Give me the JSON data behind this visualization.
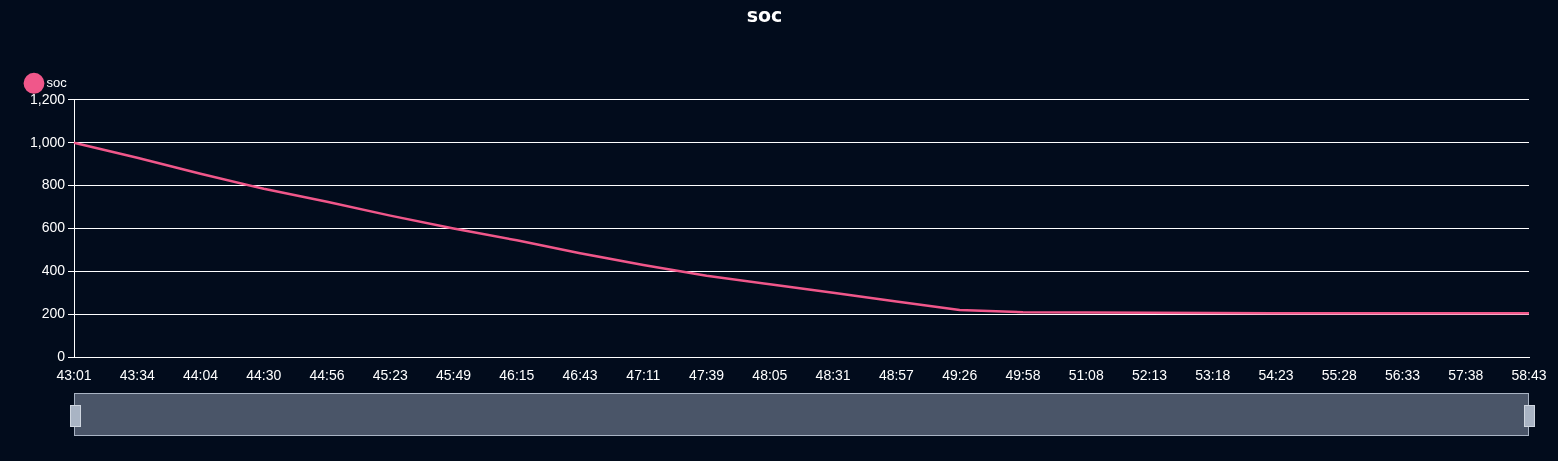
{
  "chart_data": {
    "type": "line",
    "title": "soc",
    "categories": [
      "43:01",
      "43:34",
      "44:04",
      "44:30",
      "44:56",
      "45:23",
      "45:49",
      "46:15",
      "46:43",
      "47:11",
      "47:39",
      "48:05",
      "48:31",
      "48:57",
      "49:26",
      "49:58",
      "51:08",
      "52:13",
      "53:18",
      "54:23",
      "55:28",
      "56:33",
      "57:38",
      "58:43"
    ],
    "series": [
      {
        "name": "soc",
        "color": "#f0578a",
        "values": [
          1000,
          930,
          855,
          785,
          725,
          660,
          600,
          545,
          485,
          430,
          380,
          340,
          300,
          260,
          220,
          210,
          208,
          207,
          206,
          205,
          205,
          205,
          205,
          205
        ]
      }
    ],
    "ylim": [
      0,
      1200
    ],
    "yticks": [
      0,
      {
        "value": 200,
        "label": "200"
      },
      400,
      600,
      800,
      {
        "value": 1000,
        "label": "1,000"
      },
      {
        "value": 1200,
        "label": "1,200"
      }
    ],
    "grid": "y",
    "legend": "top left",
    "marker": "none",
    "line_style": "solid"
  }
}
